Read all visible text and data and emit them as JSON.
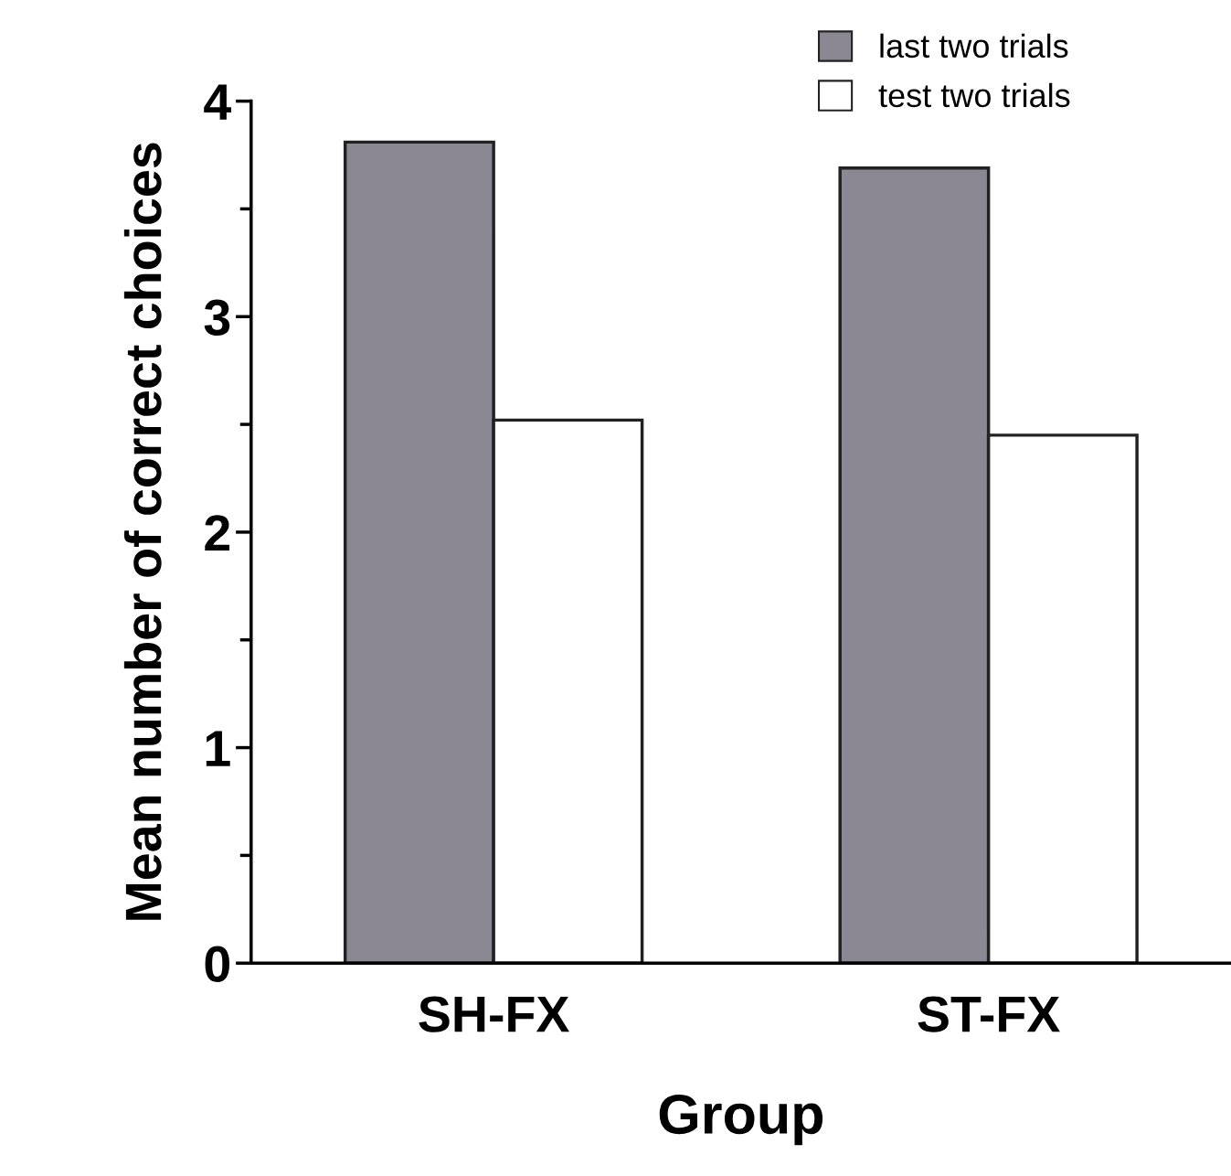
{
  "chart_data": {
    "type": "bar",
    "xlabel": "Group",
    "ylabel": "Mean number of correct choices",
    "categories": [
      "SH-FX",
      "ST-FX"
    ],
    "series": [
      {
        "name": "last two trials",
        "color": "#8c8893",
        "values": [
          3.81,
          3.69
        ]
      },
      {
        "name": "test two trials",
        "color": "#ffffff",
        "values": [
          2.52,
          2.45
        ]
      }
    ],
    "ylim": [
      0,
      4
    ],
    "yticks": [
      0,
      {
        "value": 0.5,
        "label": null
      },
      1,
      {
        "value": 1.5,
        "label": null
      },
      2,
      {
        "value": 2.5,
        "label": null
      },
      3,
      {
        "value": 3.5,
        "label": null
      },
      4
    ],
    "grid": false,
    "legend": "top right"
  }
}
